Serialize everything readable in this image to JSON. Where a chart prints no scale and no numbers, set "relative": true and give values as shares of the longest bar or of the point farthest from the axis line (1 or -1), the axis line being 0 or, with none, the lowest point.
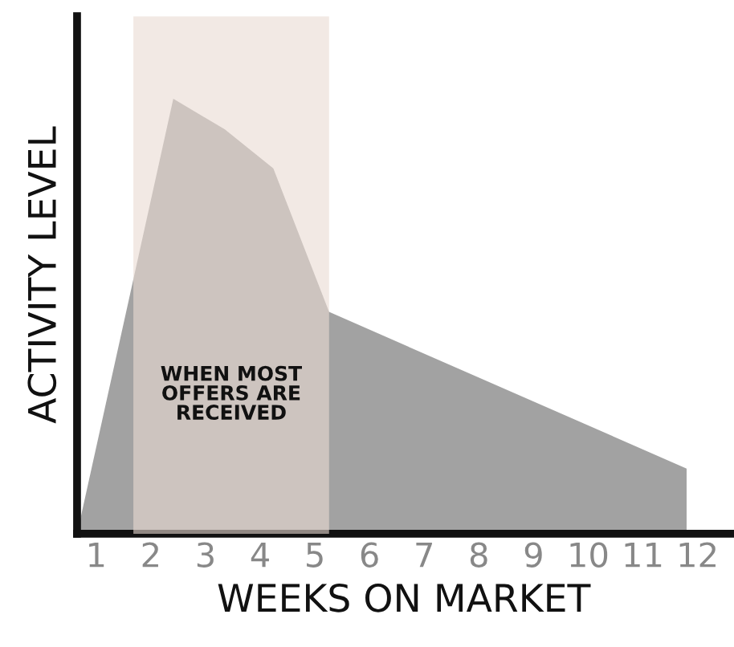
{
  "chart_data": {
    "type": "area",
    "relative": true,
    "xlabel": "WEEKS ON MARKET",
    "ylabel": "ACTIVITY LEVEL",
    "xlim": [
      0.65,
      12.6
    ],
    "xticks": [
      1,
      2,
      3,
      4,
      5,
      6,
      7,
      8,
      9,
      10,
      11,
      12
    ],
    "series": [
      {
        "color": "#a2a2a2",
        "x": [
          0.65,
          2.41,
          3.35,
          4.24,
          5.26,
          11.8,
          11.8
        ],
        "values": [
          0,
          1,
          0.93,
          0.84,
          0.51,
          0.15,
          0
        ]
      }
    ],
    "bands": [
      {
        "axis": "x",
        "from": 1.68,
        "to": 5.26,
        "label": "WHEN MOST\nOFFERS ARE\nRECEIVED",
        "color": "#eadbd2"
      }
    ],
    "tick_labels": "x",
    "grid": false,
    "legend": false
  }
}
